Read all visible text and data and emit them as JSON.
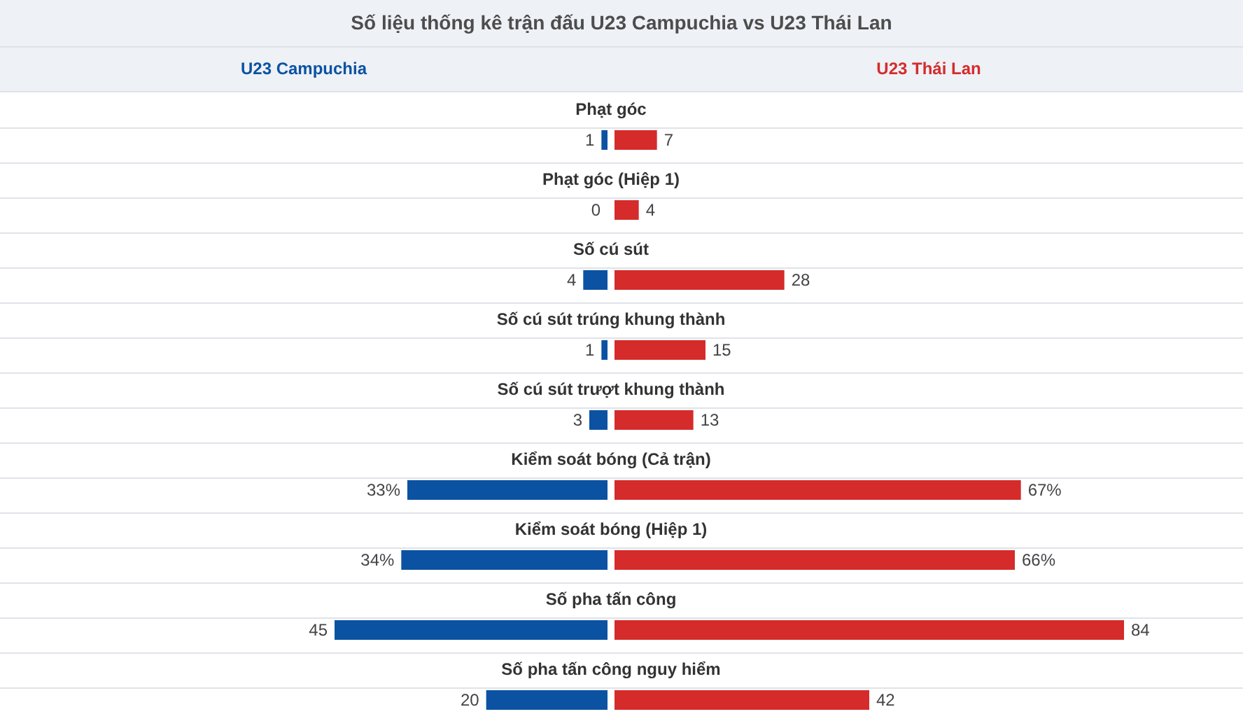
{
  "chart_data": [
    {
      "type": "bar",
      "orientation": "horizontal",
      "title": "Số liệu thống kê trận đấu U23 Campuchia vs U23 Thái Lan",
      "categories": [
        "Phạt góc",
        "Phạt góc (Hiệp 1)",
        "Số cú sút",
        "Số cú sút trúng khung thành",
        "Số cú sút trượt khung thành",
        "Kiểm soát bóng (Cả trận)",
        "Kiểm soát bóng (Hiệp 1)",
        "Số pha tấn công",
        "Số pha tấn công nguy hiểm"
      ],
      "series": [
        {
          "name": "U23 Campuchia",
          "color": "#0b52a3",
          "values": [
            1,
            0,
            4,
            1,
            3,
            33,
            34,
            45,
            20
          ],
          "value_labels": [
            "1",
            "0",
            "4",
            "1",
            "3",
            "33%",
            "34%",
            "45",
            "20"
          ]
        }
      ],
      "legend": "top"
    },
    {
      "type": "bar",
      "orientation": "horizontal",
      "categories": [
        null,
        null,
        null,
        null,
        null,
        null,
        null,
        null,
        null
      ],
      "series": [
        {
          "name": "U23 Thái Lan",
          "color": "#d52b2b",
          "values": [
            7,
            4,
            28,
            15,
            13,
            67,
            66,
            84,
            42
          ],
          "value_labels": [
            "7",
            "4",
            "28",
            "15",
            "13",
            "67%",
            "66%",
            "84",
            "42"
          ]
        }
      ],
      "legend": "top"
    }
  ]
}
